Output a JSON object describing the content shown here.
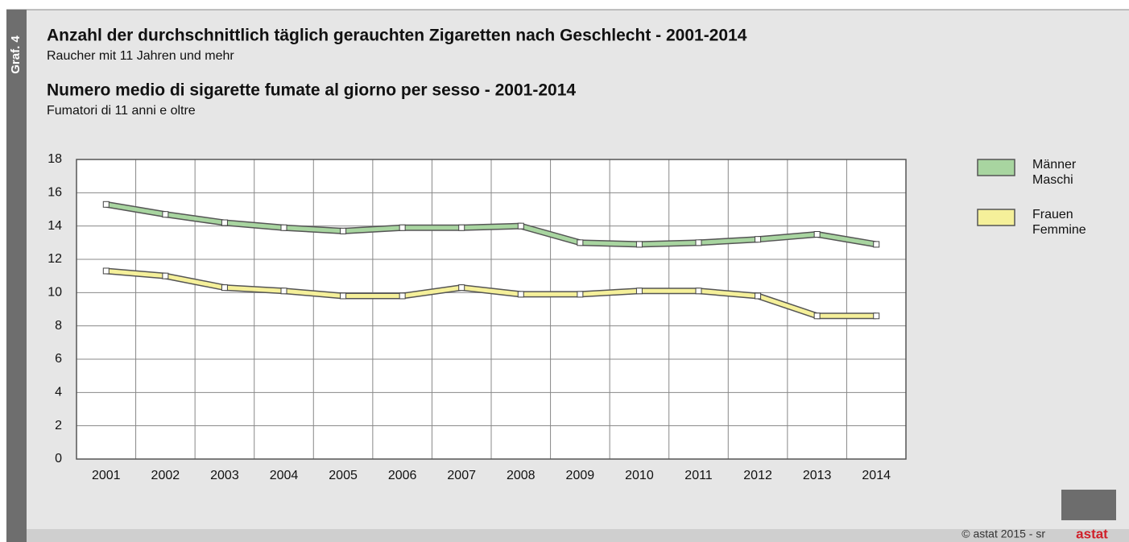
{
  "chart_data": {
    "type": "line",
    "label": "Graf. 4",
    "title": "Anzahl der durchschnittlich täglich gerauchten Zigaretten nach Geschlecht - 2001-2014",
    "subtitle": "Raucher mit 11 Jahren und mehr",
    "title2": "Numero medio di sigarette fumate al giorno per sesso - 2001-2014",
    "subtitle2": "Fumatori di 11 anni e oltre",
    "credit": "© astat 2015 - sr",
    "logo": "astat",
    "categories": [
      "2001",
      "2002",
      "2003",
      "2004",
      "2005",
      "2006",
      "2007",
      "2008",
      "2009",
      "2010",
      "2011",
      "2012",
      "2013",
      "2014"
    ],
    "series": [
      {
        "name": "Männer\nMaschi",
        "color": "#a8d5a0",
        "values": [
          15.3,
          14.7,
          14.2,
          13.9,
          13.7,
          13.9,
          13.9,
          14.0,
          13.0,
          12.9,
          13.0,
          13.2,
          13.5,
          12.9
        ]
      },
      {
        "name": "Frauen\nFemmine",
        "color": "#f5f09a",
        "values": [
          11.3,
          11.0,
          10.3,
          10.1,
          9.8,
          9.8,
          10.3,
          9.9,
          9.9,
          10.1,
          10.1,
          9.8,
          8.6,
          8.6
        ]
      }
    ],
    "ylim": [
      0,
      18
    ],
    "yticks": [
      0,
      2,
      4,
      6,
      8,
      10,
      12,
      14,
      16,
      18
    ],
    "grid": true,
    "legend": "right"
  }
}
